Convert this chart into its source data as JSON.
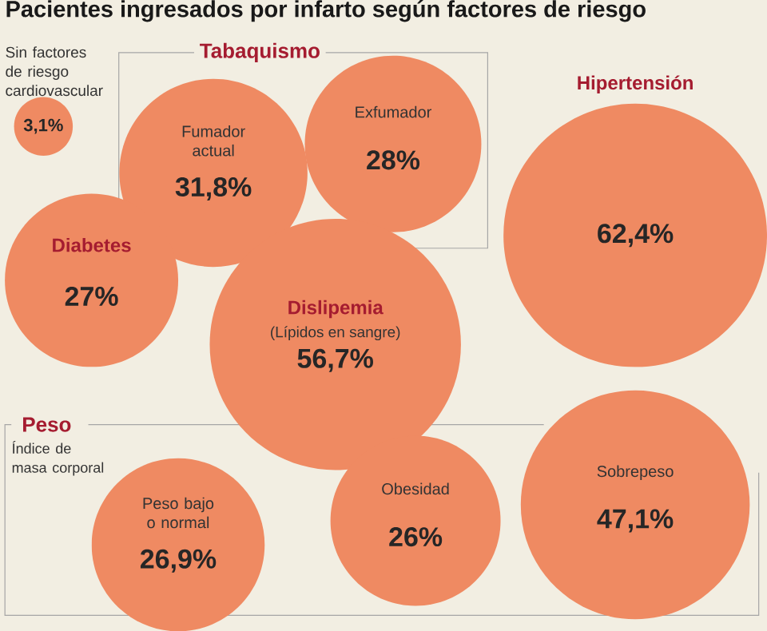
{
  "chart_data": {
    "type": "other",
    "title": "Pacientes ingresados por infarto según factores de riesgo",
    "categories": [
      "Sin factores de riesgo cardiovascular",
      "Fumador actual",
      "Exfumador",
      "Hipertensión",
      "Diabetes",
      "Dislipemia",
      "Peso bajo o normal",
      "Obesidad",
      "Sobrepeso"
    ],
    "values": [
      3.1,
      31.8,
      28,
      62.4,
      27,
      56.7,
      26.9,
      26,
      47.1
    ],
    "value_labels": [
      "3,1%",
      "31,8%",
      "28%",
      "62,4%",
      "27%",
      "56,7%",
      "26,9%",
      "26%",
      "47,1%"
    ],
    "colors": [
      "#ef8a62",
      "#ef8a62",
      "#ef8a62",
      "#ef8a62",
      "#ef8a62",
      "#ef8a62",
      "#ef8a62",
      "#ef8a62",
      "#ef8a62"
    ],
    "annotations": [
      "Tabaquismo",
      "Peso",
      "Índice de masa corporal",
      "(Lípidos en sangre)"
    ]
  }
}
